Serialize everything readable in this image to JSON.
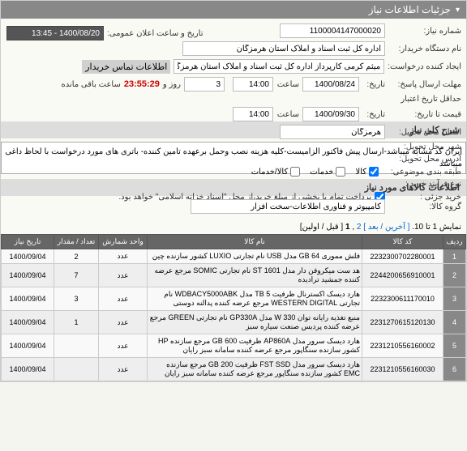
{
  "panel": {
    "title": "جزئیات اطلاعات نیاز"
  },
  "form": {
    "need_no_label": "شماره نیاز:",
    "need_no": "1100004147000020",
    "buyer_label": "نام دستگاه خریدار:",
    "buyer": "اداره کل ثبت اسناد و املاک استان هرمزگان",
    "creator_label": "ایجاد کننده درخواست:",
    "creator": "میثم کرمی کارپرداز اداره کل ثبت اسناد و املاک استان هرمزگان",
    "contact_btn": "اطلاعات تماس خریدار",
    "reply_deadline_label": "مهلت ارسال پاسخ:",
    "reply_date_lbl": "تاریخ:",
    "reply_date": "1400/08/24",
    "time_lbl": "ساعت",
    "reply_time": "14:00",
    "remain_lbl": "ساعت باقی مانده",
    "remain_days": "3",
    "remain_days_lbl": "روز و",
    "countdown": "23:55:29",
    "valid_min_label": "حداقل تاریخ اعتبار",
    "valid_date_lbl": "تاریخ:",
    "valid_date": "1400/09/30",
    "valid_time": "14:00",
    "qty_note_label": "قیمت تا تاریخ:",
    "province_label": "استان محل تحویل:",
    "province": "هرمزگان",
    "city_label": "شهر محل تحویل:",
    "deliv_addr_label": "آدرس محل تحویل:",
    "service_label": "طبقه بندی موضوعی:",
    "cb_goods": "کالا",
    "cb_service": "خدمات",
    "cb_goods_service": "کالا/خدمات",
    "process_label": "نوع فرآیند خرید :",
    "partial_label": "خرید جزئی :",
    "partial_note": "پرداخت تمام یا بخشی از مبلغ خرید،از محل \"اسناد خزانه اسلامی\" خواهد بود.",
    "announce_label": "تاریخ و ساعت اعلان عمومی:",
    "announce_value": "1400/08/20 - 13:45"
  },
  "descSection": {
    "title": "شرح کلی نیاز",
    "text": "ایران کد مشابه میباشد-ارسال پیش فاکتور الزامیست-کلیه هزینه نصب وحمل برعهده تامین کننده- باتری های مورد درخواست با لحاظ داغی میباشد"
  },
  "itemsSection": {
    "title": "اطلاعات کالاهای مورد نیاز",
    "group_label": "گروه کالا:",
    "group_value": "کامپیوتر و فناوری اطلاعات-سخت افزار",
    "nav_text": "نمایش 1 تا 10.",
    "nav_last": "[ آخرین",
    "nav_next": "/ بعد ]",
    "nav_page2": "2",
    "nav_sep": ",",
    "nav_page1": "1",
    "nav_prev_first": "[ قبل / اولین]",
    "headers": {
      "idx": "ردیف",
      "code": "کد کالا",
      "name": "نام کالا",
      "unit": "واحد شمارش",
      "qty": "تعداد / مقدار",
      "date": "تاریخ نیاز"
    },
    "rows": [
      {
        "idx": "1",
        "code": "2232300702280001",
        "name": "فلش مموری 64 GB مدل USB نام تجارتی LUXIO کشور سازنده چین",
        "unit": "عدد",
        "qty": "2",
        "date": "1400/09/04"
      },
      {
        "idx": "2",
        "code": "2244200656910001",
        "name": "هد ست میکروفن دار مدل 1601 ST نام تجارتی SOMIC مرجع عرضه کننده جمشید ترادیده",
        "unit": "عدد",
        "qty": "7",
        "date": "1400/09/04"
      },
      {
        "idx": "3",
        "code": "2232300611170010",
        "name": "هارد دیسک اکسترنال ظرفیت TB 5 مدل WDBACY5000ABK نام تجارتی WESTERN DIGITAL مرجع عرضه کننده پدالنه دوستی",
        "unit": "عدد",
        "qty": "3",
        "date": "1400/09/04"
      },
      {
        "idx": "4",
        "code": "2231270615120130",
        "name": "منبع تغذیه رایانه توان 330 W مدل GP330A نام تجارتی GREEN مرجع عرضه کننده پردیس صنعت سیاره سبز",
        "unit": "عدد",
        "qty": "1",
        "date": "1400/09/04"
      },
      {
        "idx": "5",
        "code": "2231210556160002",
        "name": "هارد دیسک سرور مدل AP860A ظرفیت GB 600 مرجع سازنده HP کشور سازنده سنگاپور مرجع عرضه کننده سامانه سبز رایان",
        "unit": "عدد",
        "qty": "",
        "date": "1400/09/04"
      },
      {
        "idx": "6",
        "code": "2231210556160030",
        "name": "هارد دیسک سرور مدل FST SSD ظرفیت GB 200 مرجع سازنده EMC کشور سازنده سنگاپور مرجع عرضه کننده سامانه سبز رایان",
        "unit": "عدد",
        "qty": "",
        "date": "1400/09/04"
      }
    ]
  }
}
